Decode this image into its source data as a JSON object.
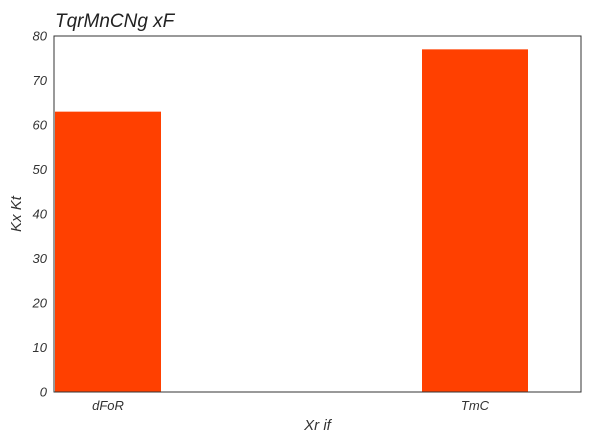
{
  "chart_data": {
    "type": "bar",
    "title": "TqrMnCNg xF",
    "xlabel": "Xr if",
    "ylabel": "Kx Kt",
    "categories": [
      "dFoR",
      "TmC"
    ],
    "values": [
      63,
      77
    ],
    "ylim": [
      0,
      80
    ],
    "yticks": [
      "0",
      "10",
      "20",
      "30",
      "40",
      "50",
      "60",
      "70",
      "80"
    ],
    "grid": false,
    "bar_color": "#ff4000"
  }
}
